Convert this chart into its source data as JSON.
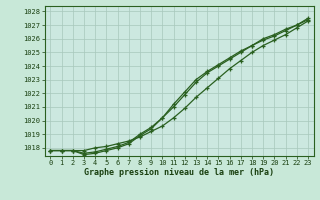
{
  "title": "Graphe pression niveau de la mer (hPa)",
  "bg_color": "#c8e8d8",
  "plot_bg_color": "#cce8e0",
  "grid_color": "#a8c8bc",
  "line_color": "#2a6020",
  "xlim_min": -0.5,
  "xlim_max": 23.5,
  "ylim_min": 1017.4,
  "ylim_max": 1028.4,
  "yticks": [
    1018,
    1019,
    1020,
    1021,
    1022,
    1023,
    1024,
    1025,
    1026,
    1027,
    1028
  ],
  "xticks": [
    0,
    1,
    2,
    3,
    4,
    5,
    6,
    7,
    8,
    9,
    10,
    11,
    12,
    13,
    14,
    15,
    16,
    17,
    18,
    19,
    20,
    21,
    22,
    23
  ],
  "series1": [
    1017.8,
    1017.8,
    1017.8,
    1017.8,
    1018.0,
    1018.1,
    1018.3,
    1018.5,
    1018.8,
    1019.2,
    1019.6,
    1020.2,
    1020.9,
    1021.7,
    1022.4,
    1023.1,
    1023.8,
    1024.4,
    1025.0,
    1025.5,
    1025.9,
    1026.3,
    1026.8,
    1027.3
  ],
  "series2": [
    1017.8,
    1017.8,
    1017.8,
    1017.6,
    1017.7,
    1017.9,
    1018.1,
    1018.4,
    1019.0,
    1019.5,
    1020.2,
    1021.0,
    1021.9,
    1022.8,
    1023.5,
    1024.0,
    1024.5,
    1025.0,
    1025.5,
    1026.0,
    1026.3,
    1026.7,
    1027.0,
    1027.4
  ],
  "series3": [
    1017.8,
    1017.8,
    1017.8,
    1017.5,
    1017.6,
    1017.8,
    1018.0,
    1018.3,
    1018.9,
    1019.4,
    1020.2,
    1021.2,
    1022.1,
    1023.0,
    1023.6,
    1024.1,
    1024.6,
    1025.1,
    1025.5,
    1025.9,
    1026.2,
    1026.6,
    1027.0,
    1027.5
  ]
}
